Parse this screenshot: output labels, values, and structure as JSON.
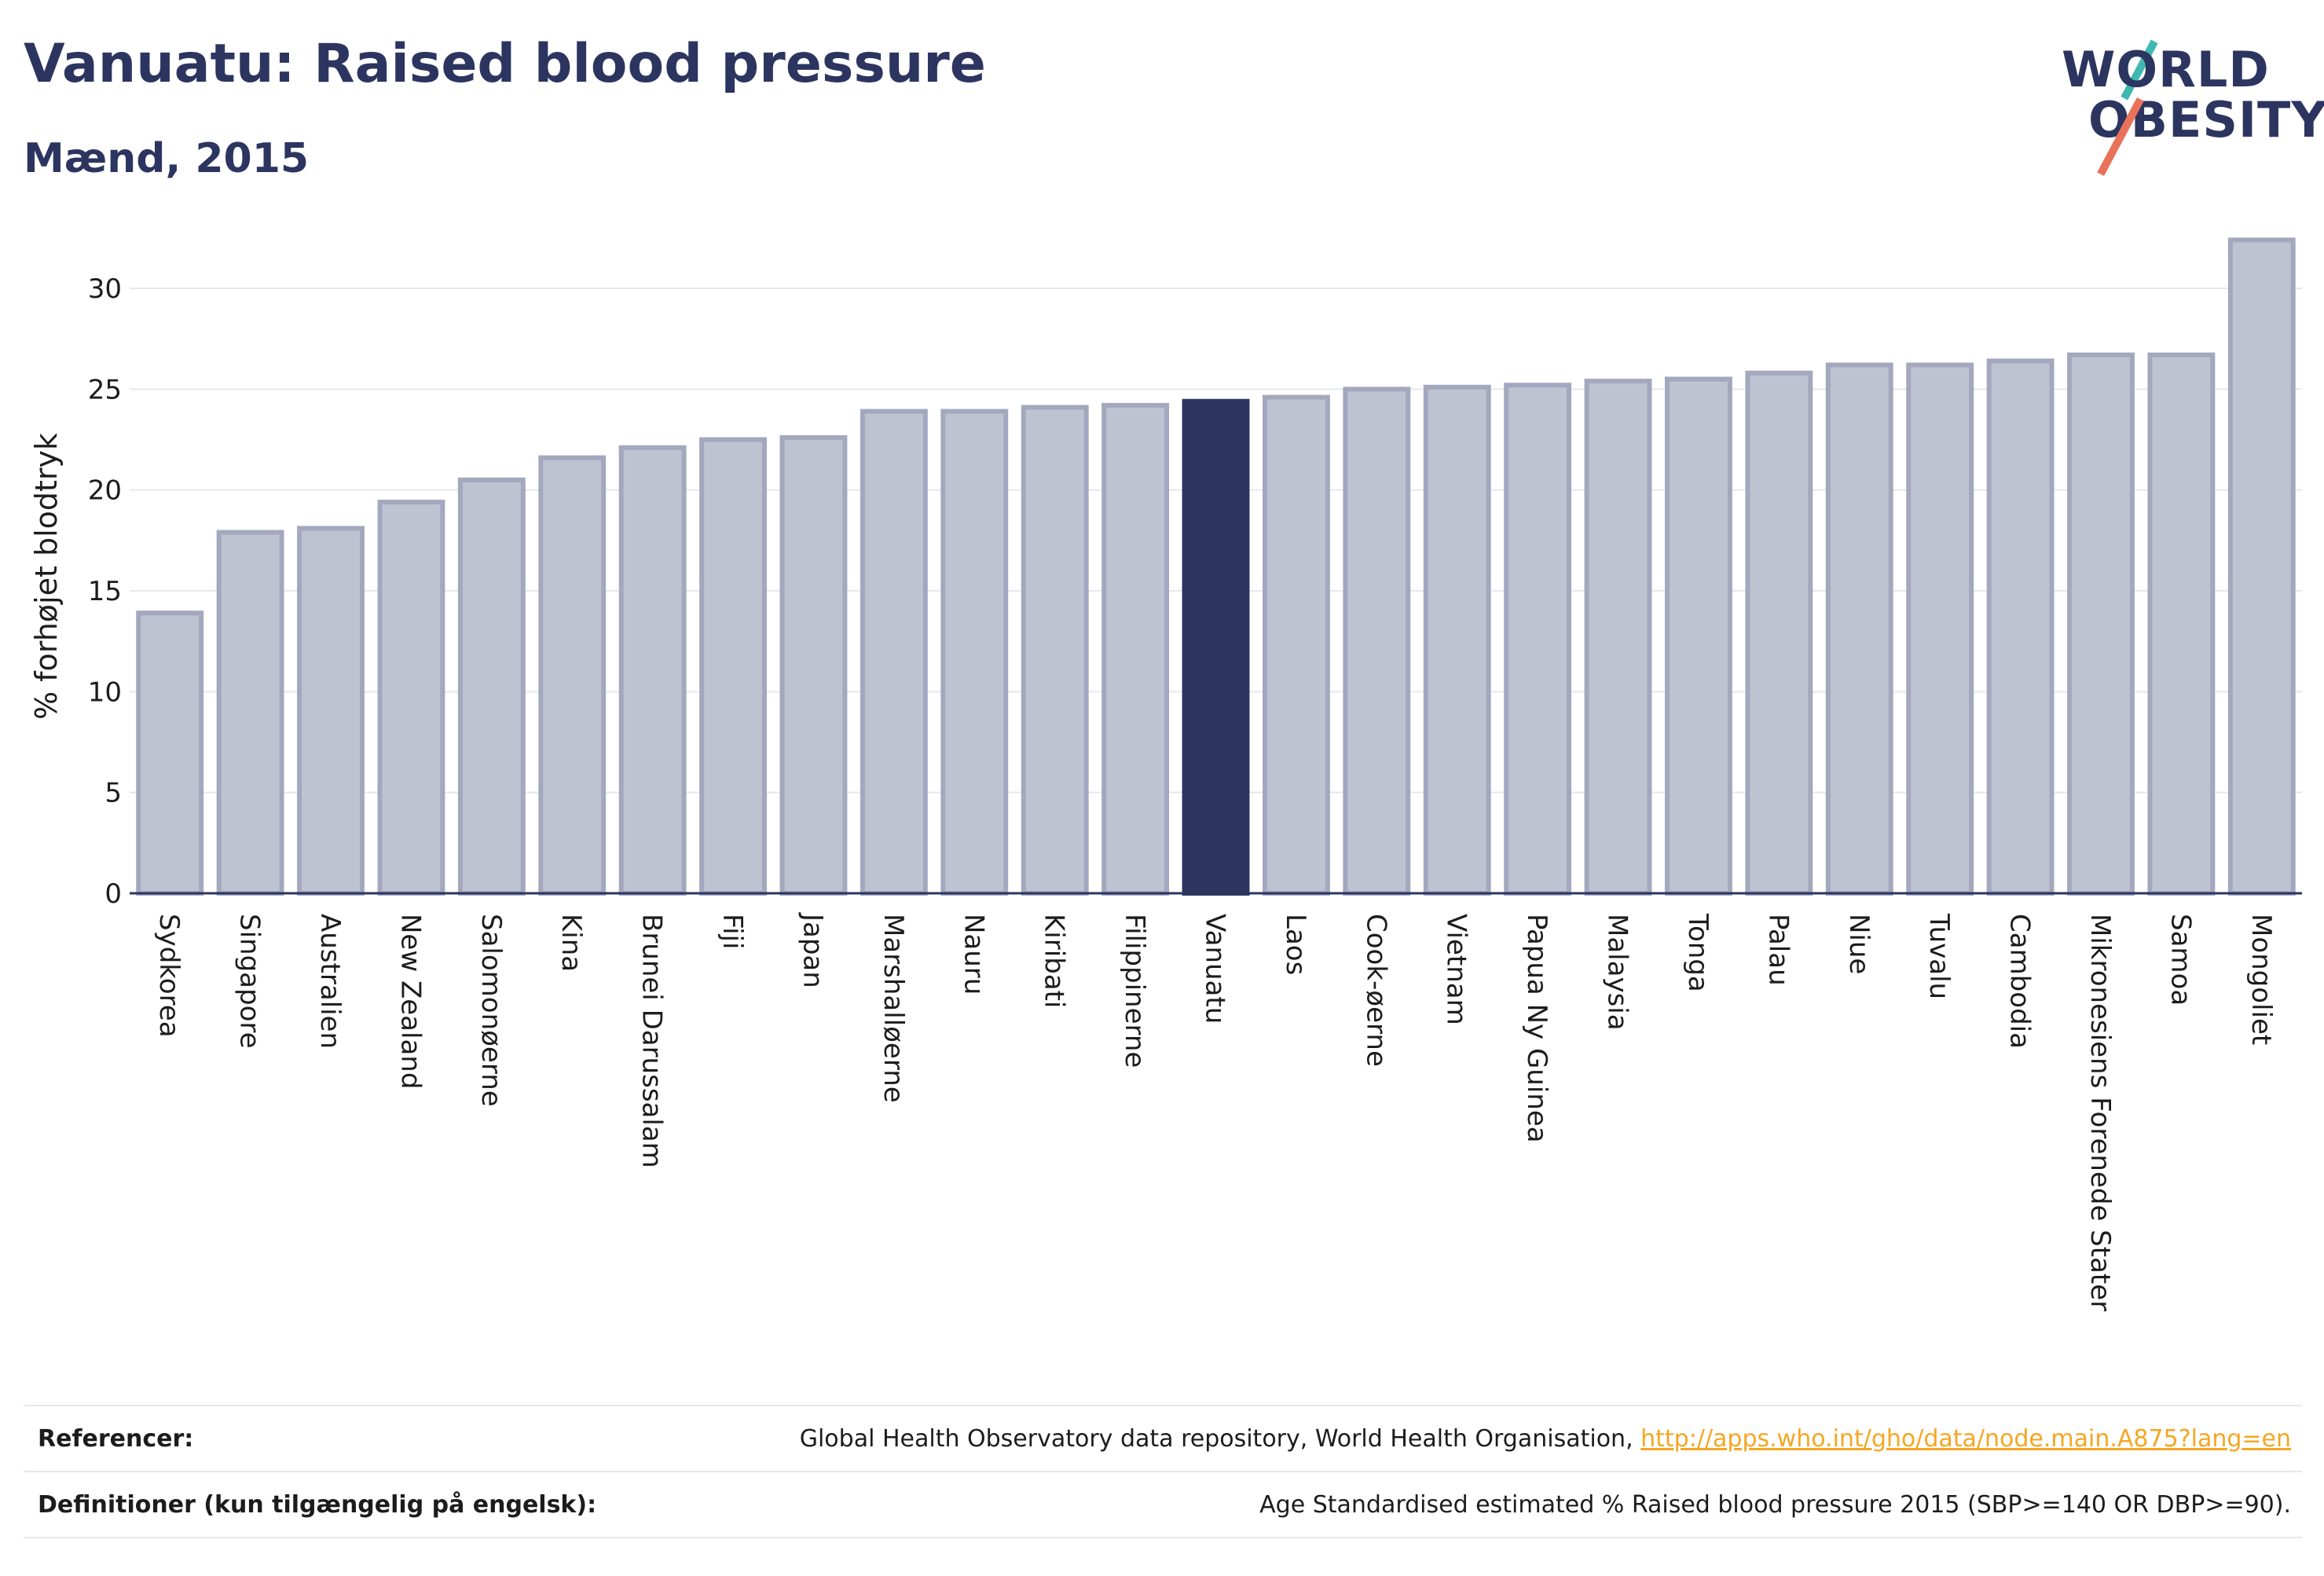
{
  "header": {
    "title": "Vanuatu: Raised blood pressure",
    "subtitle": "Mænd, 2015"
  },
  "logo": {
    "line1": "WORLD",
    "line2": "OBESITY"
  },
  "colors": {
    "highlight": "#2c3560",
    "bar_fill": "#bfc2d0",
    "bar_stroke": "#a4a8be",
    "grid": "#e6e8ef",
    "link": "#f5a623",
    "logo_teal": "#3fb8b1",
    "logo_red": "#e8735a"
  },
  "chart_data": {
    "type": "bar",
    "ylabel": "% forhøjet blodtryk",
    "xlabel": "",
    "ylim": [
      0,
      33
    ],
    "yticks": [
      0,
      5,
      10,
      15,
      20,
      25,
      30
    ],
    "grid": true,
    "highlight_category": "Vanuatu",
    "categories": [
      "Sydkorea",
      "Singapore",
      "Australien",
      "New Zealand",
      "Salomonøerne",
      "Kina",
      "Brunei Darussalam",
      "Fiji",
      "Japan",
      "Marshalløerne",
      "Nauru",
      "Kiribati",
      "Filippinerne",
      "Vanuatu",
      "Laos",
      "Cook-øerne",
      "Vietnam",
      "Papua Ny Guinea",
      "Malaysia",
      "Tonga",
      "Palau",
      "Niue",
      "Tuvalu",
      "Cambodia",
      "Mikronesiens Forenede Stater",
      "Samoa",
      "Mongoliet"
    ],
    "values": [
      13.9,
      17.9,
      18.1,
      19.4,
      20.5,
      21.6,
      22.1,
      22.5,
      22.6,
      23.9,
      23.9,
      24.1,
      24.2,
      24.4,
      24.6,
      25.0,
      25.1,
      25.2,
      25.4,
      25.5,
      25.8,
      26.2,
      26.2,
      26.4,
      26.7,
      26.7,
      32.4
    ]
  },
  "footer": {
    "references_label": "Referencer:",
    "references_text": "Global Health Observatory data repository, World Health Organisation, ",
    "references_link": "http://apps.who.int/gho/data/node.main.A875?lang=en",
    "definitions_label": "Definitioner (kun tilgængelig på engelsk):",
    "definitions_text": "Age Standardised estimated % Raised blood pressure 2015 (SBP>=140 OR DBP>=90)."
  }
}
